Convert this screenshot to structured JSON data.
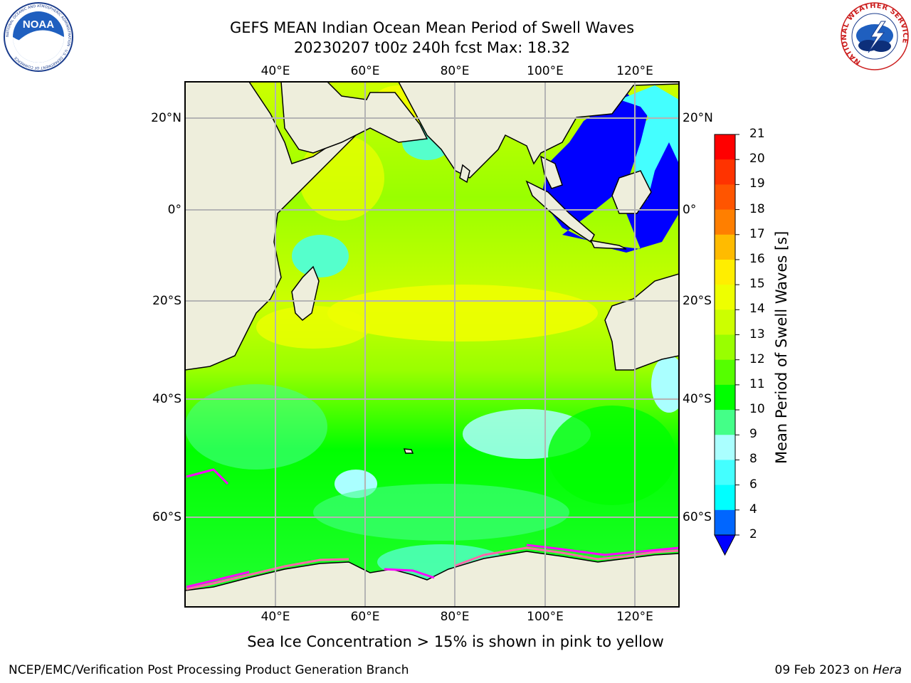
{
  "header": {
    "title_line1": "GEFS MEAN Indian Ocean Mean Period of Swell Waves",
    "title_line2": "20230207 t00z 240h fcst   Max: 18.32"
  },
  "logos": {
    "left": {
      "name": "noaa-logo",
      "text": "NOAA",
      "ring_text": "NATIONAL OCEANIC AND ATMOSPHERIC ADMINISTRATION · U.S. DEPARTMENT OF COMMERCE"
    },
    "right": {
      "name": "nws-logo",
      "ring_text": "NATIONAL WEATHER SERVICE"
    }
  },
  "map": {
    "lon_labels": [
      "40°E",
      "60°E",
      "80°E",
      "100°E",
      "120°E"
    ],
    "lat_labels": [
      "20°N",
      "0°",
      "20°S",
      "40°S",
      "60°S"
    ],
    "colors": {
      "land": "#eeeedc",
      "frame": "#000000",
      "grid": "#b4b4b4"
    }
  },
  "colorbar": {
    "label": "Mean Period of Swell Waves [s]",
    "ticks": [
      "21",
      "20",
      "19",
      "18",
      "17",
      "16",
      "15",
      "14",
      "13",
      "12",
      "11",
      "10",
      "9",
      "8",
      "6",
      "4",
      "2"
    ],
    "colors": [
      "#ff0000",
      "#ff3300",
      "#ff5500",
      "#ff7f00",
      "#ff9900",
      "#ffbb00",
      "#ffee00",
      "#eeff00",
      "#ccff00",
      "#99ff00",
      "#55ff00",
      "#00ff00",
      "#44ff88",
      "#55ffcc",
      "#aaffff",
      "#44ffff",
      "#00ffff",
      "#0066ff",
      "#0000ff"
    ]
  },
  "footer": {
    "note": "Sea Ice Concentration > 15% is shown in pink to yellow",
    "credit_left": "NCEP/EMC/Verification Post Processing Product Generation Branch",
    "credit_right_date": "09 Feb 2023 on ",
    "credit_right_host": "Hera"
  }
}
